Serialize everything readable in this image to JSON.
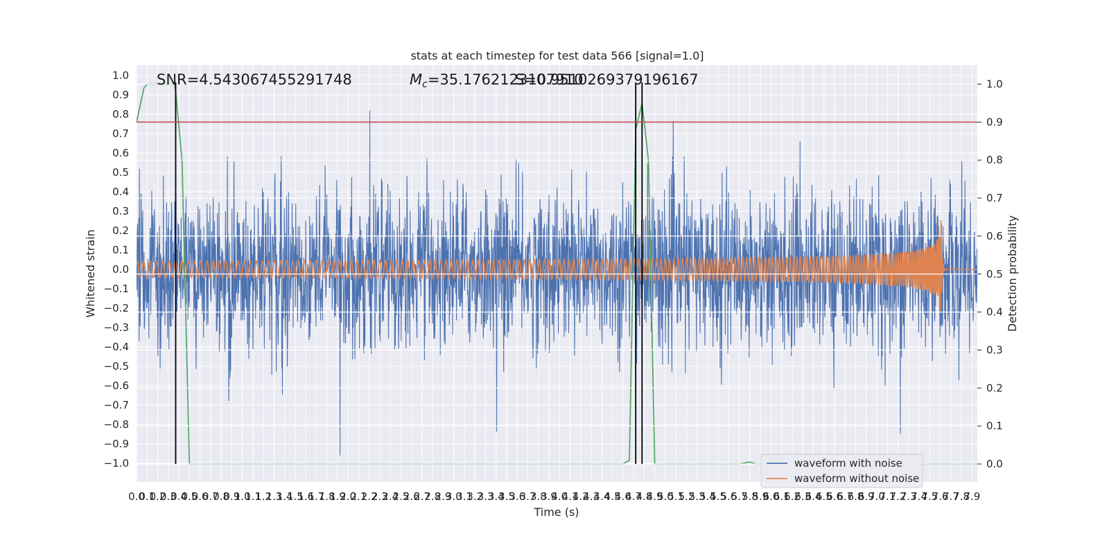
{
  "chart_data": {
    "type": "line",
    "title": "stats at each timestep for test data 566 [signal=1.0]",
    "xlabel": "Time (s)",
    "ylabel_left": "Whitened strain",
    "ylabel_right": "Detection probability",
    "xlim": [
      0.0,
      7.95
    ],
    "ylim_left": [
      -1.1,
      1.05
    ],
    "ylim_right": [
      -0.05,
      1.04
    ],
    "x_ticks": [
      "0.0",
      "0.1",
      "0.2",
      "0.3",
      "0.4",
      "0.5",
      "0.6",
      "0.7",
      "0.8",
      "0.9",
      "1.0",
      "1.1",
      "1.2",
      "1.3",
      "1.4",
      "1.5",
      "1.6",
      "1.7",
      "1.8",
      "1.9",
      "2.0",
      "2.1",
      "2.2",
      "2.3",
      "2.4",
      "2.5",
      "2.6",
      "2.7",
      "2.8",
      "2.9",
      "3.0",
      "3.1",
      "3.2",
      "3.3",
      "3.4",
      "3.5",
      "3.6",
      "3.7",
      "3.8",
      "3.9",
      "4.0",
      "4.1",
      "4.2",
      "4.3",
      "4.4",
      "4.5",
      "4.6",
      "4.7",
      "4.8",
      "4.9",
      "5.0",
      "5.1",
      "5.2",
      "5.3",
      "5.4",
      "5.5",
      "5.6",
      "5.7",
      "5.8",
      "5.9",
      "6.0",
      "6.1",
      "6.2",
      "6.3",
      "6.4",
      "6.5",
      "6.6",
      "6.7",
      "6.8",
      "6.9",
      "7.0",
      "7.1",
      "7.2",
      "7.3",
      "7.4",
      "7.5",
      "7.6",
      "7.7",
      "7.8",
      "7.9"
    ],
    "y_ticks_left": [
      "1.0",
      "0.9",
      "0.8",
      "0.7",
      "0.6",
      "0.5",
      "0.4",
      "0.3",
      "0.2",
      "0.1",
      "0.0",
      "-0.1",
      "-0.2",
      "-0.3",
      "-0.4",
      "-0.5",
      "-0.6",
      "-0.7",
      "-0.8",
      "-0.9",
      "-1.0"
    ],
    "y_ticks_right": [
      "1.0",
      "0.9",
      "0.8",
      "0.7",
      "0.6",
      "0.5",
      "0.4",
      "0.3",
      "0.2",
      "0.1",
      "0.0"
    ],
    "annotations": {
      "snr": "SNR=4.543067455291748",
      "mc": "=35.1762123107910",
      "mc_symbol": "M",
      "mc_subscript": "c",
      "overlap": "S=0.9510269379196167"
    },
    "series": [
      {
        "name": "waveform with noise",
        "color": "#4c72b0",
        "description_type": "noise",
        "envelope": 0.45
      },
      {
        "name": "waveform without noise",
        "color": "#dd8452",
        "description_type": "chirp",
        "merger_time": 7.61,
        "peak_amplitude": 0.28
      },
      {
        "name": "detection probability",
        "color": "#55a868",
        "axis": "right",
        "points": [
          [
            0.0,
            0.9
          ],
          [
            0.07,
            0.99
          ],
          [
            0.1,
            1.0
          ],
          [
            0.36,
            1.0
          ],
          [
            0.37,
            0.98
          ],
          [
            0.43,
            0.8
          ],
          [
            0.5,
            0.0
          ],
          [
            4.6,
            0.0
          ],
          [
            4.66,
            0.01
          ],
          [
            4.72,
            0.88
          ],
          [
            4.78,
            0.95
          ],
          [
            4.84,
            0.8
          ],
          [
            4.9,
            0.0
          ],
          [
            5.7,
            0.0
          ],
          [
            5.8,
            0.005
          ],
          [
            5.85,
            0.0
          ],
          [
            7.95,
            0.0
          ]
        ]
      }
    ],
    "threshold": {
      "value": 0.9,
      "axis": "right",
      "color": "#c44e52"
    },
    "event_lines": [
      0.37,
      4.72,
      4.78
    ],
    "legend": {
      "placement": "lower right"
    }
  }
}
